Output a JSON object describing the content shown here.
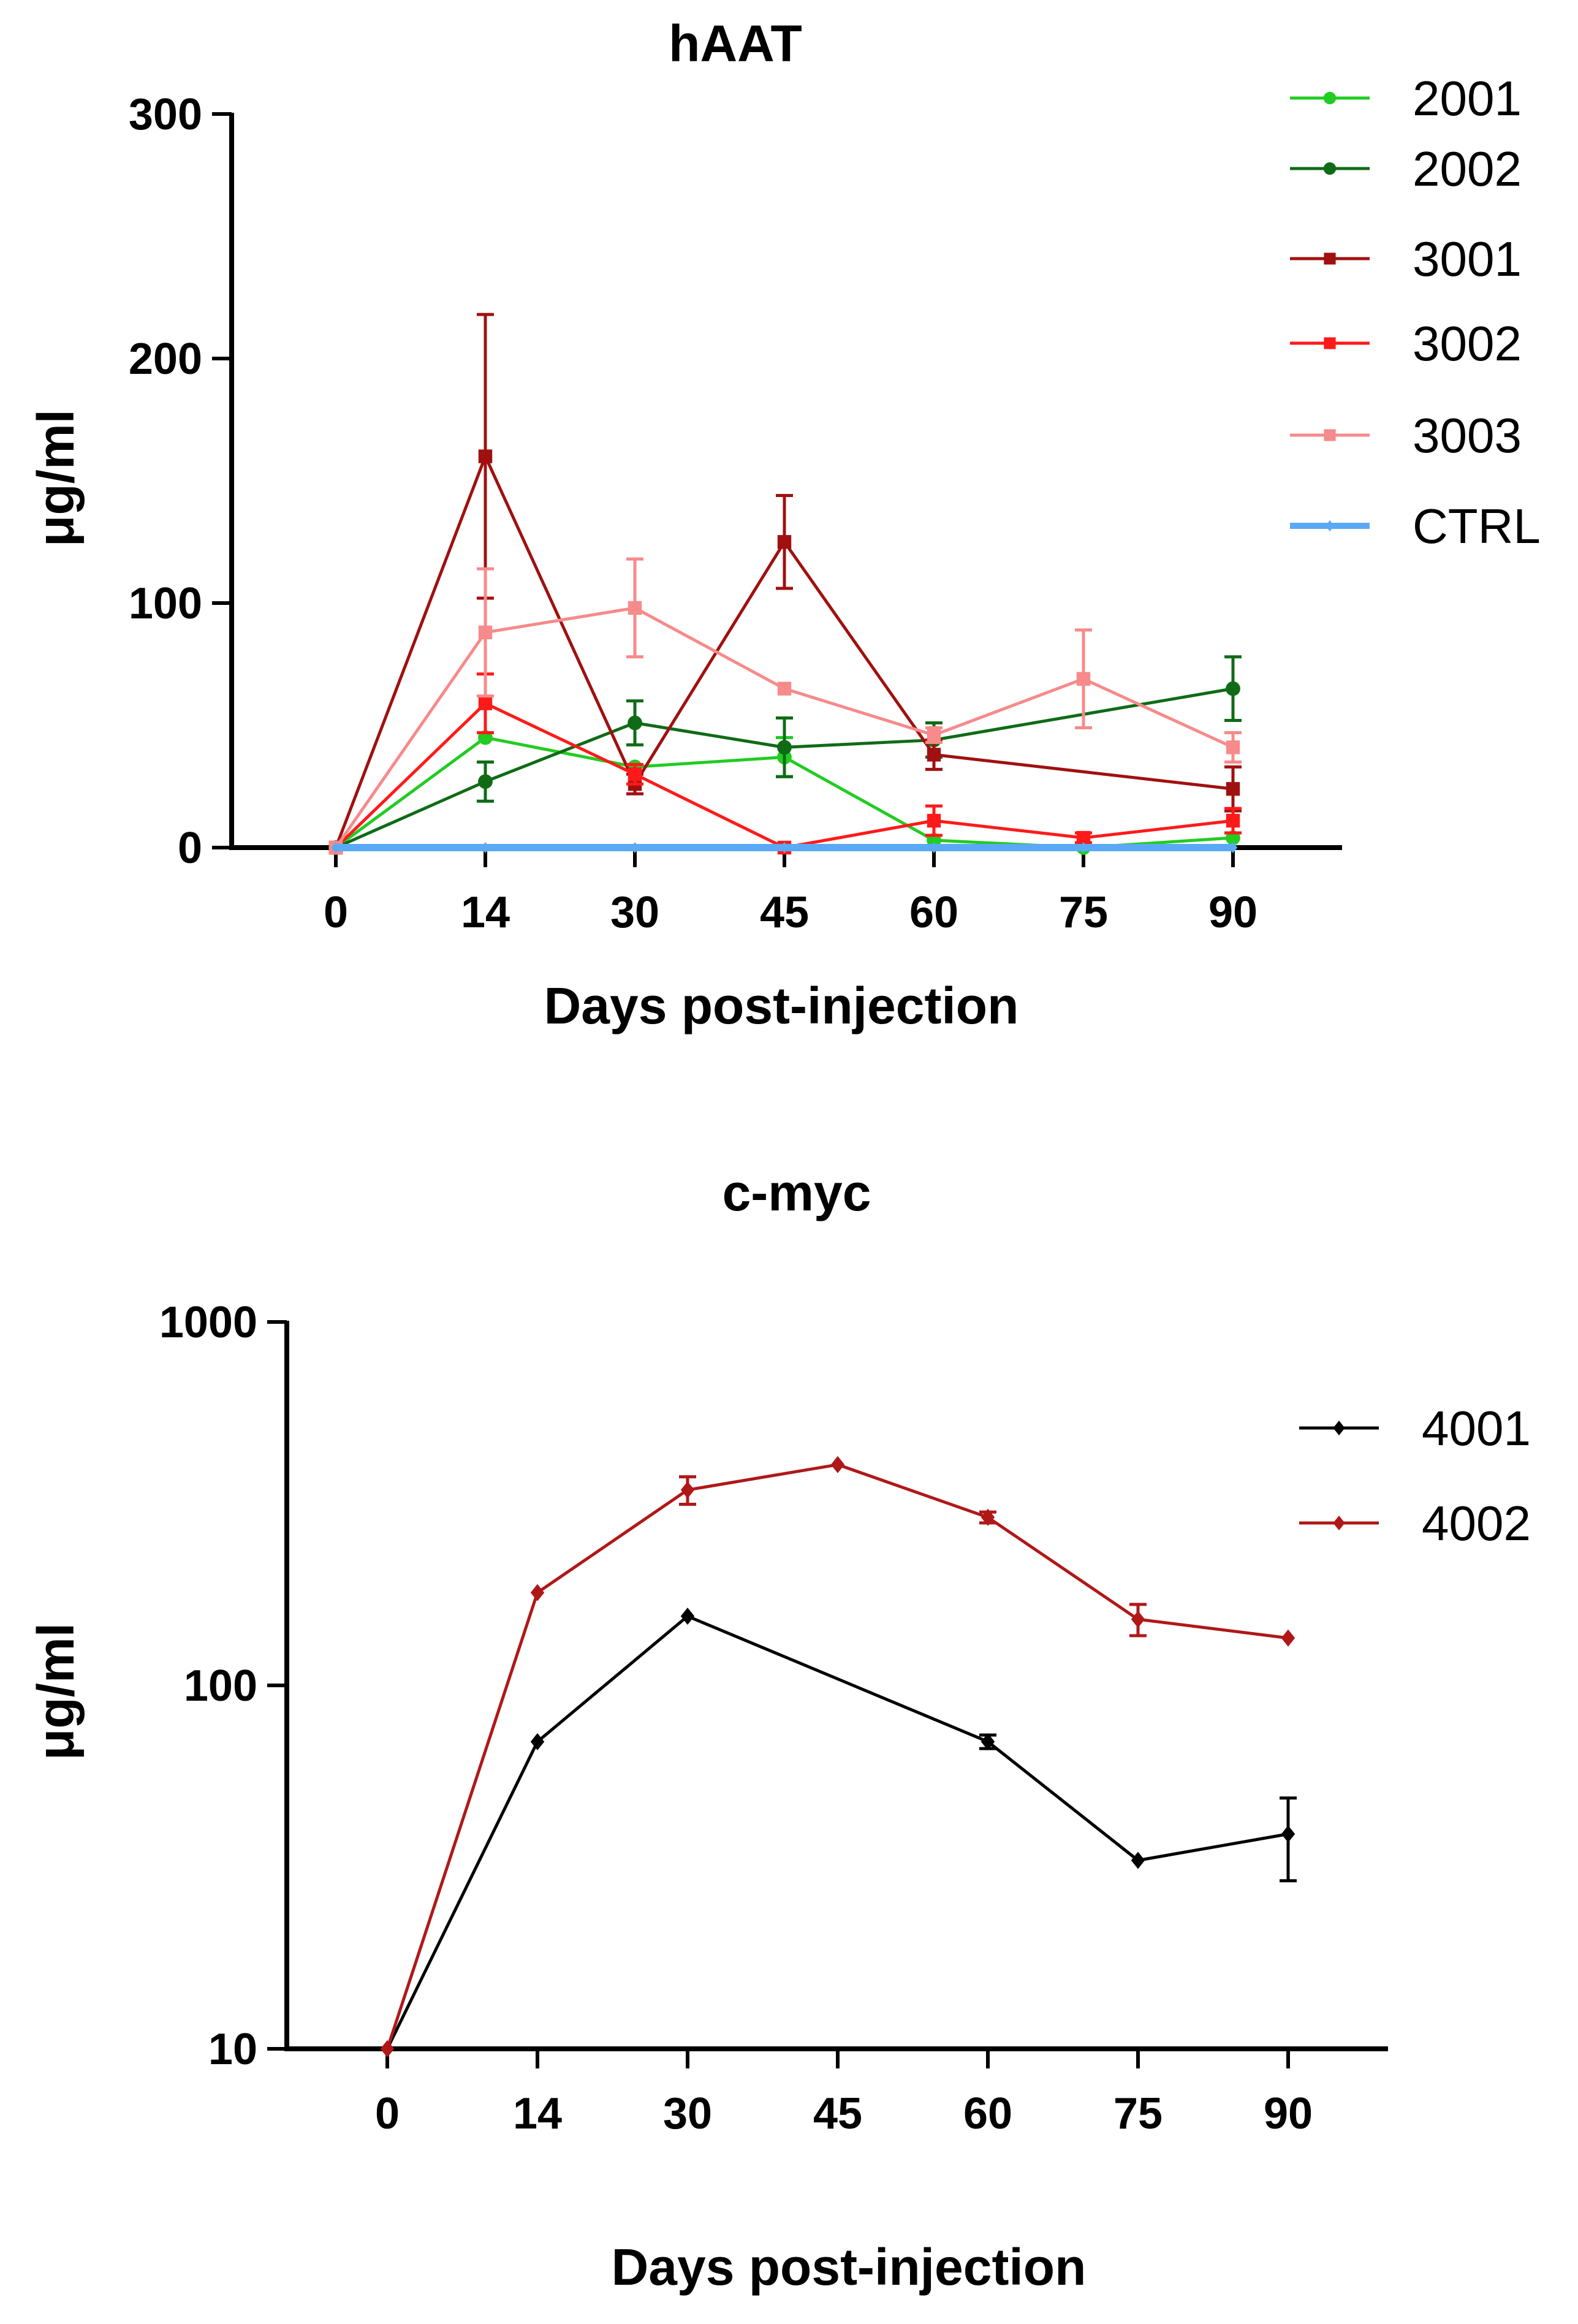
{
  "chart_data": [
    {
      "type": "line",
      "title": "hAAT",
      "xlabel": "Days post-injection",
      "ylabel": "μg/ml",
      "x_ticks": [
        "0",
        "14",
        "30",
        "45",
        "60",
        "75",
        "90"
      ],
      "y_ticks": [
        "0",
        "100",
        "200",
        "300"
      ],
      "ylim": [
        0,
        300
      ],
      "yscale": "linear",
      "legend_position": "right",
      "series": [
        {
          "name": "2001",
          "color": "#22cc22",
          "marker": "circle",
          "values": [
            0,
            45,
            33,
            37,
            3,
            0,
            4
          ],
          "errors": [
            0,
            0,
            0,
            8,
            0,
            0,
            0
          ]
        },
        {
          "name": "2002",
          "color": "#0f6b16",
          "marker": "circle",
          "values": [
            0,
            27,
            51,
            41,
            44,
            null,
            65
          ],
          "errors": [
            0,
            8,
            9,
            12,
            7,
            null,
            13
          ]
        },
        {
          "name": "3001",
          "color": "#a01010",
          "marker": "square",
          "values": [
            0,
            160,
            26,
            125,
            38,
            null,
            24
          ],
          "errors": [
            0,
            58,
            4,
            19,
            6,
            null,
            9
          ]
        },
        {
          "name": "3002",
          "color": "#ff1a1a",
          "marker": "square",
          "values": [
            0,
            59,
            30,
            0,
            11,
            4,
            11
          ],
          "errors": [
            0,
            12,
            4,
            0,
            6,
            2,
            5
          ]
        },
        {
          "name": "3003",
          "color": "#f78a8a",
          "marker": "square",
          "values": [
            0,
            88,
            98,
            65,
            46,
            69,
            41
          ],
          "errors": [
            0,
            26,
            20,
            0,
            3,
            20,
            6
          ]
        },
        {
          "name": "CTRL",
          "color": "#5aa9f5",
          "marker": "diamond",
          "values": [
            0,
            0,
            0,
            0,
            0,
            0,
            0
          ],
          "errors": [
            0,
            0,
            0,
            0,
            0,
            0,
            0
          ]
        }
      ]
    },
    {
      "type": "line",
      "title": "c-myc",
      "xlabel": "Days post-injection",
      "ylabel": "μg/ml",
      "x_ticks": [
        "0",
        "14",
        "30",
        "45",
        "60",
        "75",
        "90"
      ],
      "y_ticks": [
        "10",
        "100",
        "1000"
      ],
      "ylim": [
        10,
        1000
      ],
      "yscale": "log",
      "legend_position": "right",
      "series": [
        {
          "name": "4001",
          "color": "#000000",
          "marker": "diamond",
          "values": [
            10,
            70,
            155,
            null,
            70,
            33,
            39
          ],
          "errors": [
            0,
            0,
            0,
            null,
            3,
            0,
            10
          ]
        },
        {
          "name": "4002",
          "color": "#b01818",
          "marker": "diamond",
          "values": [
            10,
            180,
            345,
            405,
            290,
            152,
            135
          ],
          "errors": [
            0,
            0,
            30,
            0,
            10,
            15,
            0
          ]
        }
      ]
    }
  ]
}
